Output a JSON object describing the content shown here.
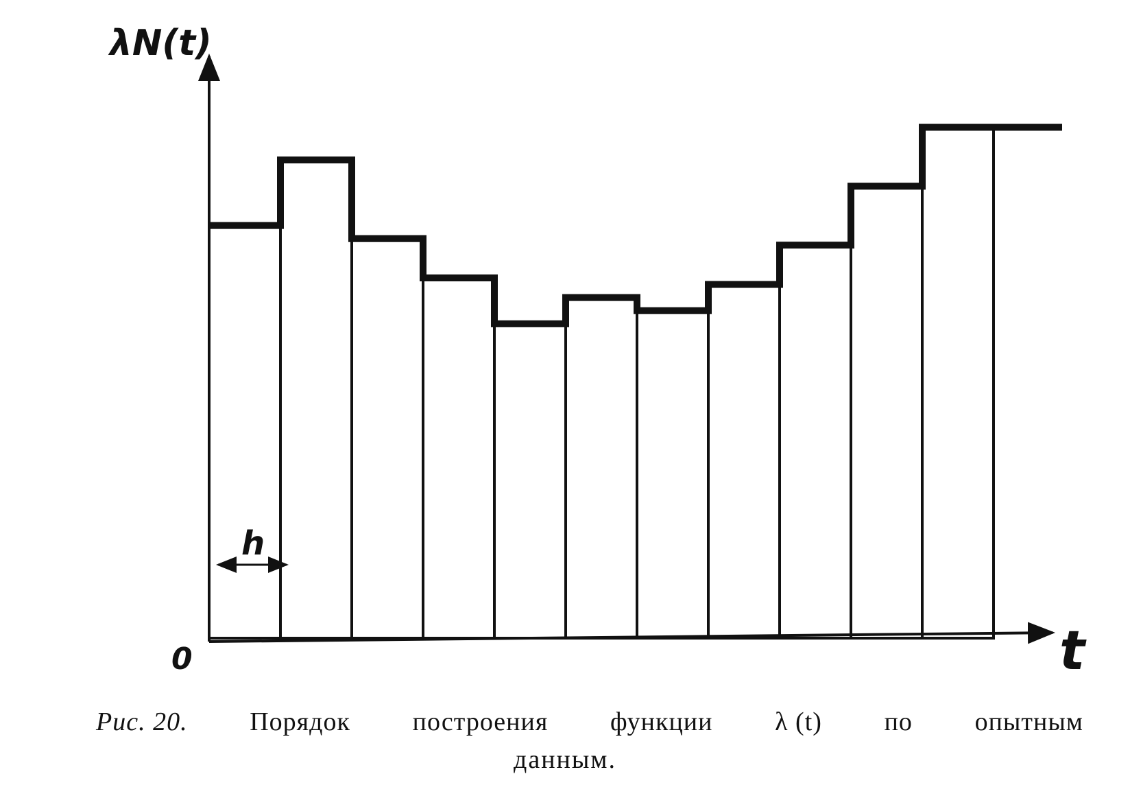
{
  "chart_data": {
    "type": "bar",
    "style": "step-histogram",
    "ylabel": "λN(t)",
    "xlabel": "t",
    "origin_label": "0",
    "interval_label": "h",
    "values": [
      6.3,
      7.3,
      6.1,
      5.5,
      4.8,
      5.2,
      5.0,
      5.4,
      6.0,
      6.9,
      7.8
    ],
    "final_step_value": 7.8,
    "ylim": [
      0,
      8.8
    ],
    "grid": false,
    "legend": "none"
  },
  "caption": {
    "fig_label": "Рис. 20.",
    "words": [
      "Порядок",
      "построения",
      "функции",
      "λ (t)",
      "по",
      "опытным"
    ],
    "line2": "данным."
  },
  "colors": {
    "ink": "#111111",
    "background": "#ffffff"
  }
}
